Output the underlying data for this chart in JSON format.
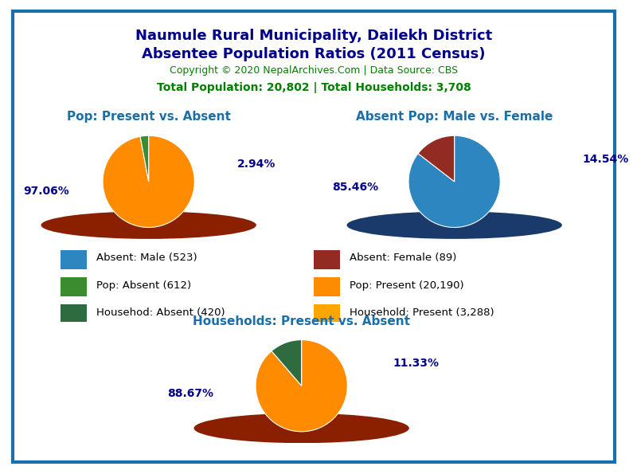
{
  "title_line1": "Naumule Rural Municipality, Dailekh District",
  "title_line2": "Absentee Population Ratios (2011 Census)",
  "copyright_text": "Copyright © 2020 NepalArchives.Com | Data Source: CBS",
  "stats_text": "Total Population: 20,802 | Total Households: 3,708",
  "title_color": "#00008B",
  "copyright_color": "#008000",
  "stats_color": "#008000",
  "pie1_title": "Pop: Present vs. Absent",
  "pie1_values": [
    97.06,
    2.94
  ],
  "pie1_colors": [
    "#FF8C00",
    "#3A8C2F"
  ],
  "pie1_shadow_color": "#8B2000",
  "pie1_labels": [
    "97.06%",
    "2.94%"
  ],
  "pie2_title": "Absent Pop: Male vs. Female",
  "pie2_values": [
    85.46,
    14.54
  ],
  "pie2_colors": [
    "#2E86C1",
    "#922B21"
  ],
  "pie2_shadow_color": "#1A3A6B",
  "pie2_labels": [
    "85.46%",
    "14.54%"
  ],
  "pie3_title": "Households: Present vs. Absent",
  "pie3_values": [
    88.67,
    11.33
  ],
  "pie3_colors": [
    "#FF8C00",
    "#2E6B3E"
  ],
  "pie3_shadow_color": "#8B2000",
  "pie3_labels": [
    "88.67%",
    "11.33%"
  ],
  "legend_entries": [
    {
      "label": "Absent: Male (523)",
      "color": "#2E86C1"
    },
    {
      "label": "Absent: Female (89)",
      "color": "#922B21"
    },
    {
      "label": "Pop: Absent (612)",
      "color": "#3A8C2F"
    },
    {
      "label": "Pop: Present (20,190)",
      "color": "#FF8C00"
    },
    {
      "label": "Househod: Absent (420)",
      "color": "#2E6B3E"
    },
    {
      "label": "Household: Present (3,288)",
      "color": "#FFA500"
    }
  ],
  "pie_title_color": "#1A6FA8",
  "label_color": "#00008B",
  "background_color": "#FFFFFF",
  "border_color": "#1A6FA8",
  "pie_startangle": 90
}
